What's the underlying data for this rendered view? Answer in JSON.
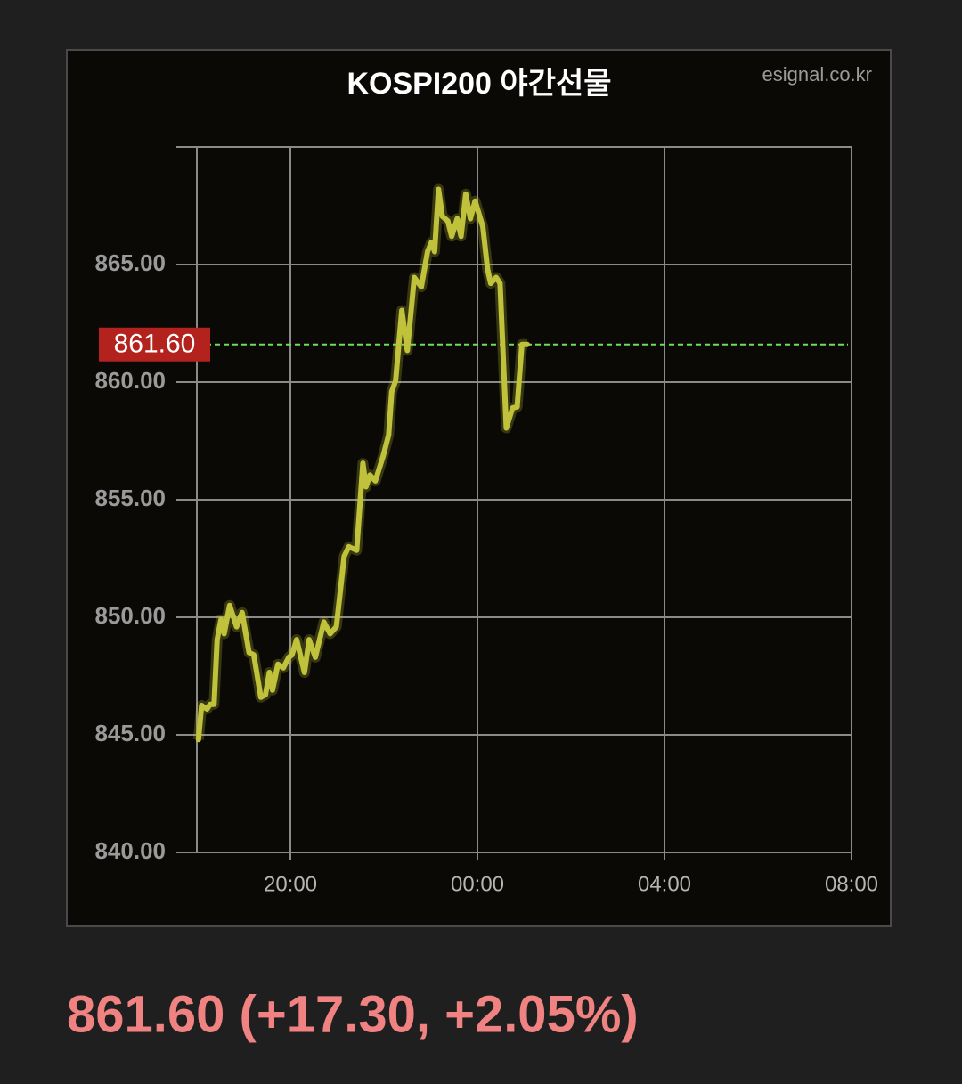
{
  "chart_data": {
    "type": "line",
    "title": "KOSPI200 야간선물",
    "source": "esignal.co.kr",
    "xlim": [
      "18:00",
      "08:00"
    ],
    "xticks": [
      "20:00",
      "00:00",
      "04:00",
      "08:00"
    ],
    "ylim": [
      840,
      870
    ],
    "yticks": [
      {
        "value": 840,
        "label": "840.00"
      },
      {
        "value": 845,
        "label": "845.00"
      },
      {
        "value": 850,
        "label": "850.00"
      },
      {
        "value": 855,
        "label": "855.00"
      },
      {
        "value": 860,
        "label": "860.00"
      },
      {
        "value": 865,
        "label": "865.00"
      }
    ],
    "grid": true,
    "last": {
      "value": 861.6,
      "label": "861.60"
    },
    "x": [
      "18:02",
      "18:06",
      "18:13",
      "18:17",
      "18:22",
      "18:26",
      "18:31",
      "18:35",
      "18:42",
      "18:51",
      "18:58",
      "19:07",
      "19:13",
      "19:22",
      "19:28",
      "19:33",
      "19:37",
      "19:44",
      "19:51",
      "19:58",
      "20:02",
      "20:08",
      "20:18",
      "20:24",
      "20:32",
      "20:43",
      "20:51",
      "20:59",
      "21:09",
      "21:15",
      "21:25",
      "21:33",
      "21:37",
      "21:42",
      "21:49",
      "21:59",
      "22:06",
      "22:10",
      "22:15",
      "22:23",
      "22:30",
      "22:39",
      "22:48",
      "22:56",
      "23:01",
      "23:05",
      "23:10",
      "23:15",
      "23:22",
      "23:27",
      "23:34",
      "23:39",
      "23:45",
      "23:51",
      "23:57",
      "00:02",
      "00:07",
      "00:13",
      "00:17",
      "00:24",
      "00:29",
      "00:37",
      "00:45",
      "00:51",
      "00:57",
      "01:04"
    ],
    "series": [
      {
        "color": "#bfc23a",
        "values": [
          844.8,
          846.25,
          846.1,
          846.3,
          846.3,
          849.05,
          849.9,
          849.3,
          850.5,
          849.6,
          850.2,
          848.5,
          848.4,
          846.6,
          846.7,
          847.65,
          846.9,
          848.0,
          847.85,
          848.3,
          848.4,
          849.05,
          847.65,
          849.05,
          848.3,
          849.8,
          849.3,
          849.6,
          852.6,
          853.0,
          852.85,
          856.55,
          855.55,
          856.05,
          855.8,
          856.85,
          857.75,
          859.6,
          860.05,
          863.05,
          861.35,
          864.45,
          864.05,
          865.55,
          865.95,
          865.55,
          868.2,
          867.05,
          866.85,
          866.2,
          866.95,
          866.2,
          868.0,
          866.95,
          867.7,
          867.15,
          866.6,
          864.8,
          864.2,
          864.45,
          864.2,
          858.05,
          858.9,
          858.95,
          861.6,
          861.6
        ]
      }
    ]
  },
  "summary": "861.60 (+17.30, +2.05%)"
}
